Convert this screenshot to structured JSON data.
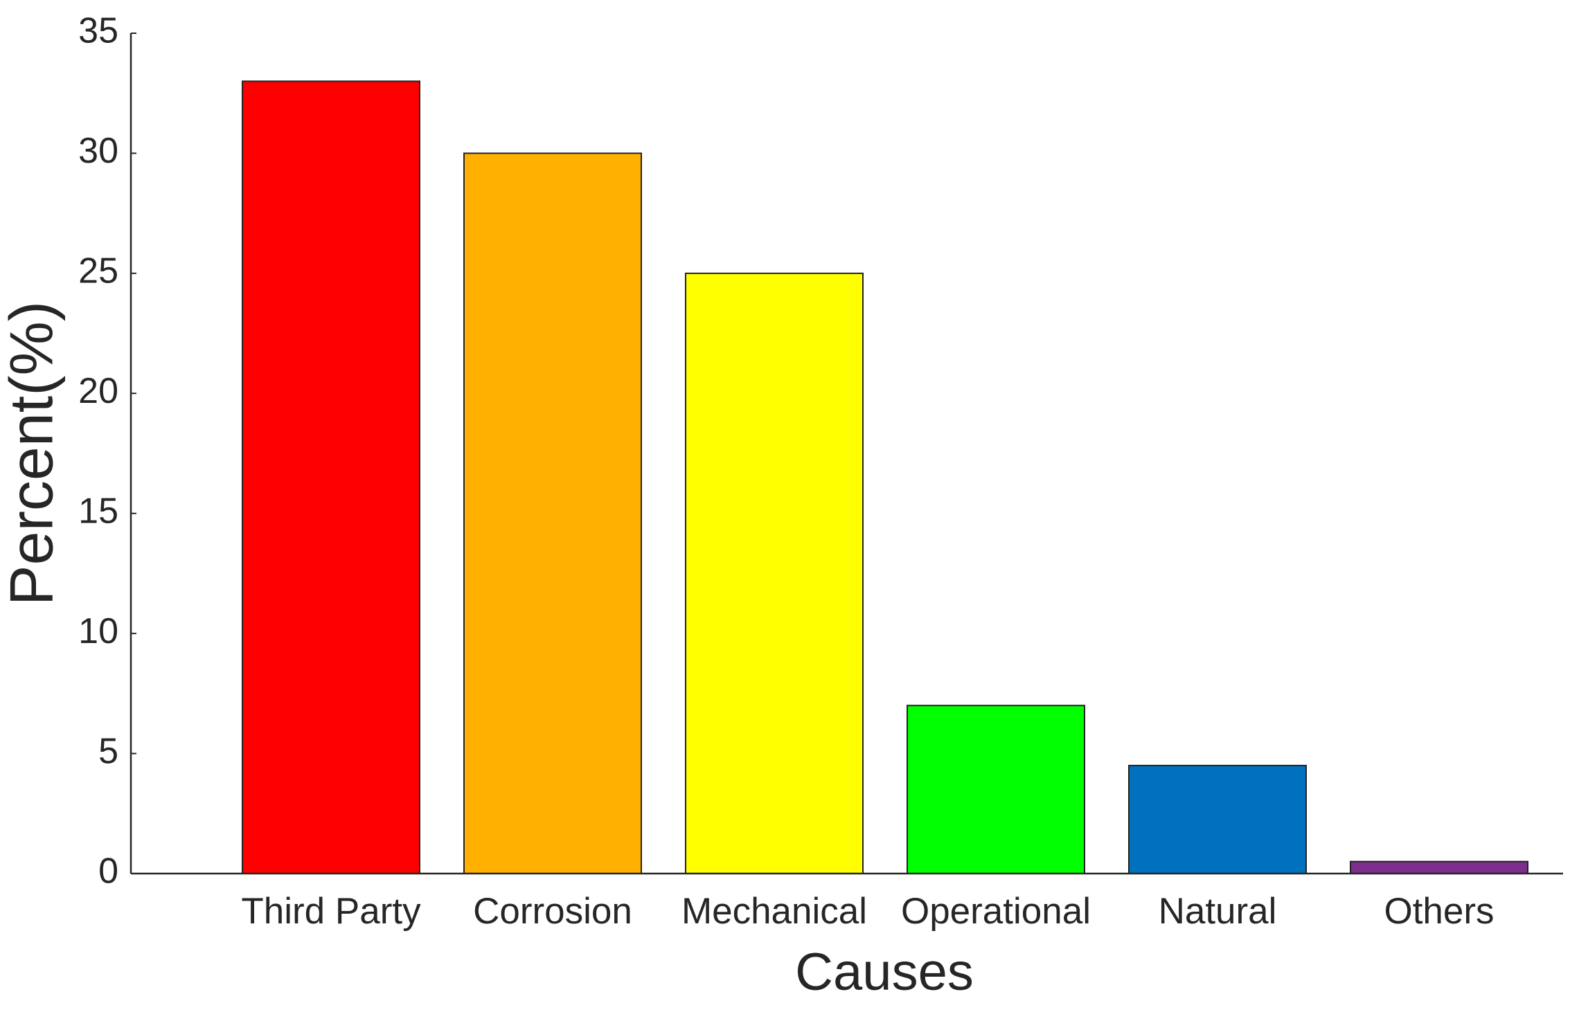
{
  "chart_data": {
    "type": "bar",
    "xlabel": "Causes",
    "ylabel": "Percent(%)",
    "categories": [
      "Third Party",
      "Corrosion",
      "Mechanical",
      "Operational",
      "Natural",
      "Others"
    ],
    "values": [
      33,
      30,
      25,
      7,
      4.5,
      0.5
    ],
    "colors": [
      "#ff0000",
      "#ffb000",
      "#ffff00",
      "#00ff00",
      "#0072bd",
      "#7e2f8e"
    ],
    "ylim": [
      0,
      35
    ],
    "yticks": [
      0,
      5,
      10,
      15,
      20,
      25,
      30,
      35
    ],
    "grid": false
  }
}
